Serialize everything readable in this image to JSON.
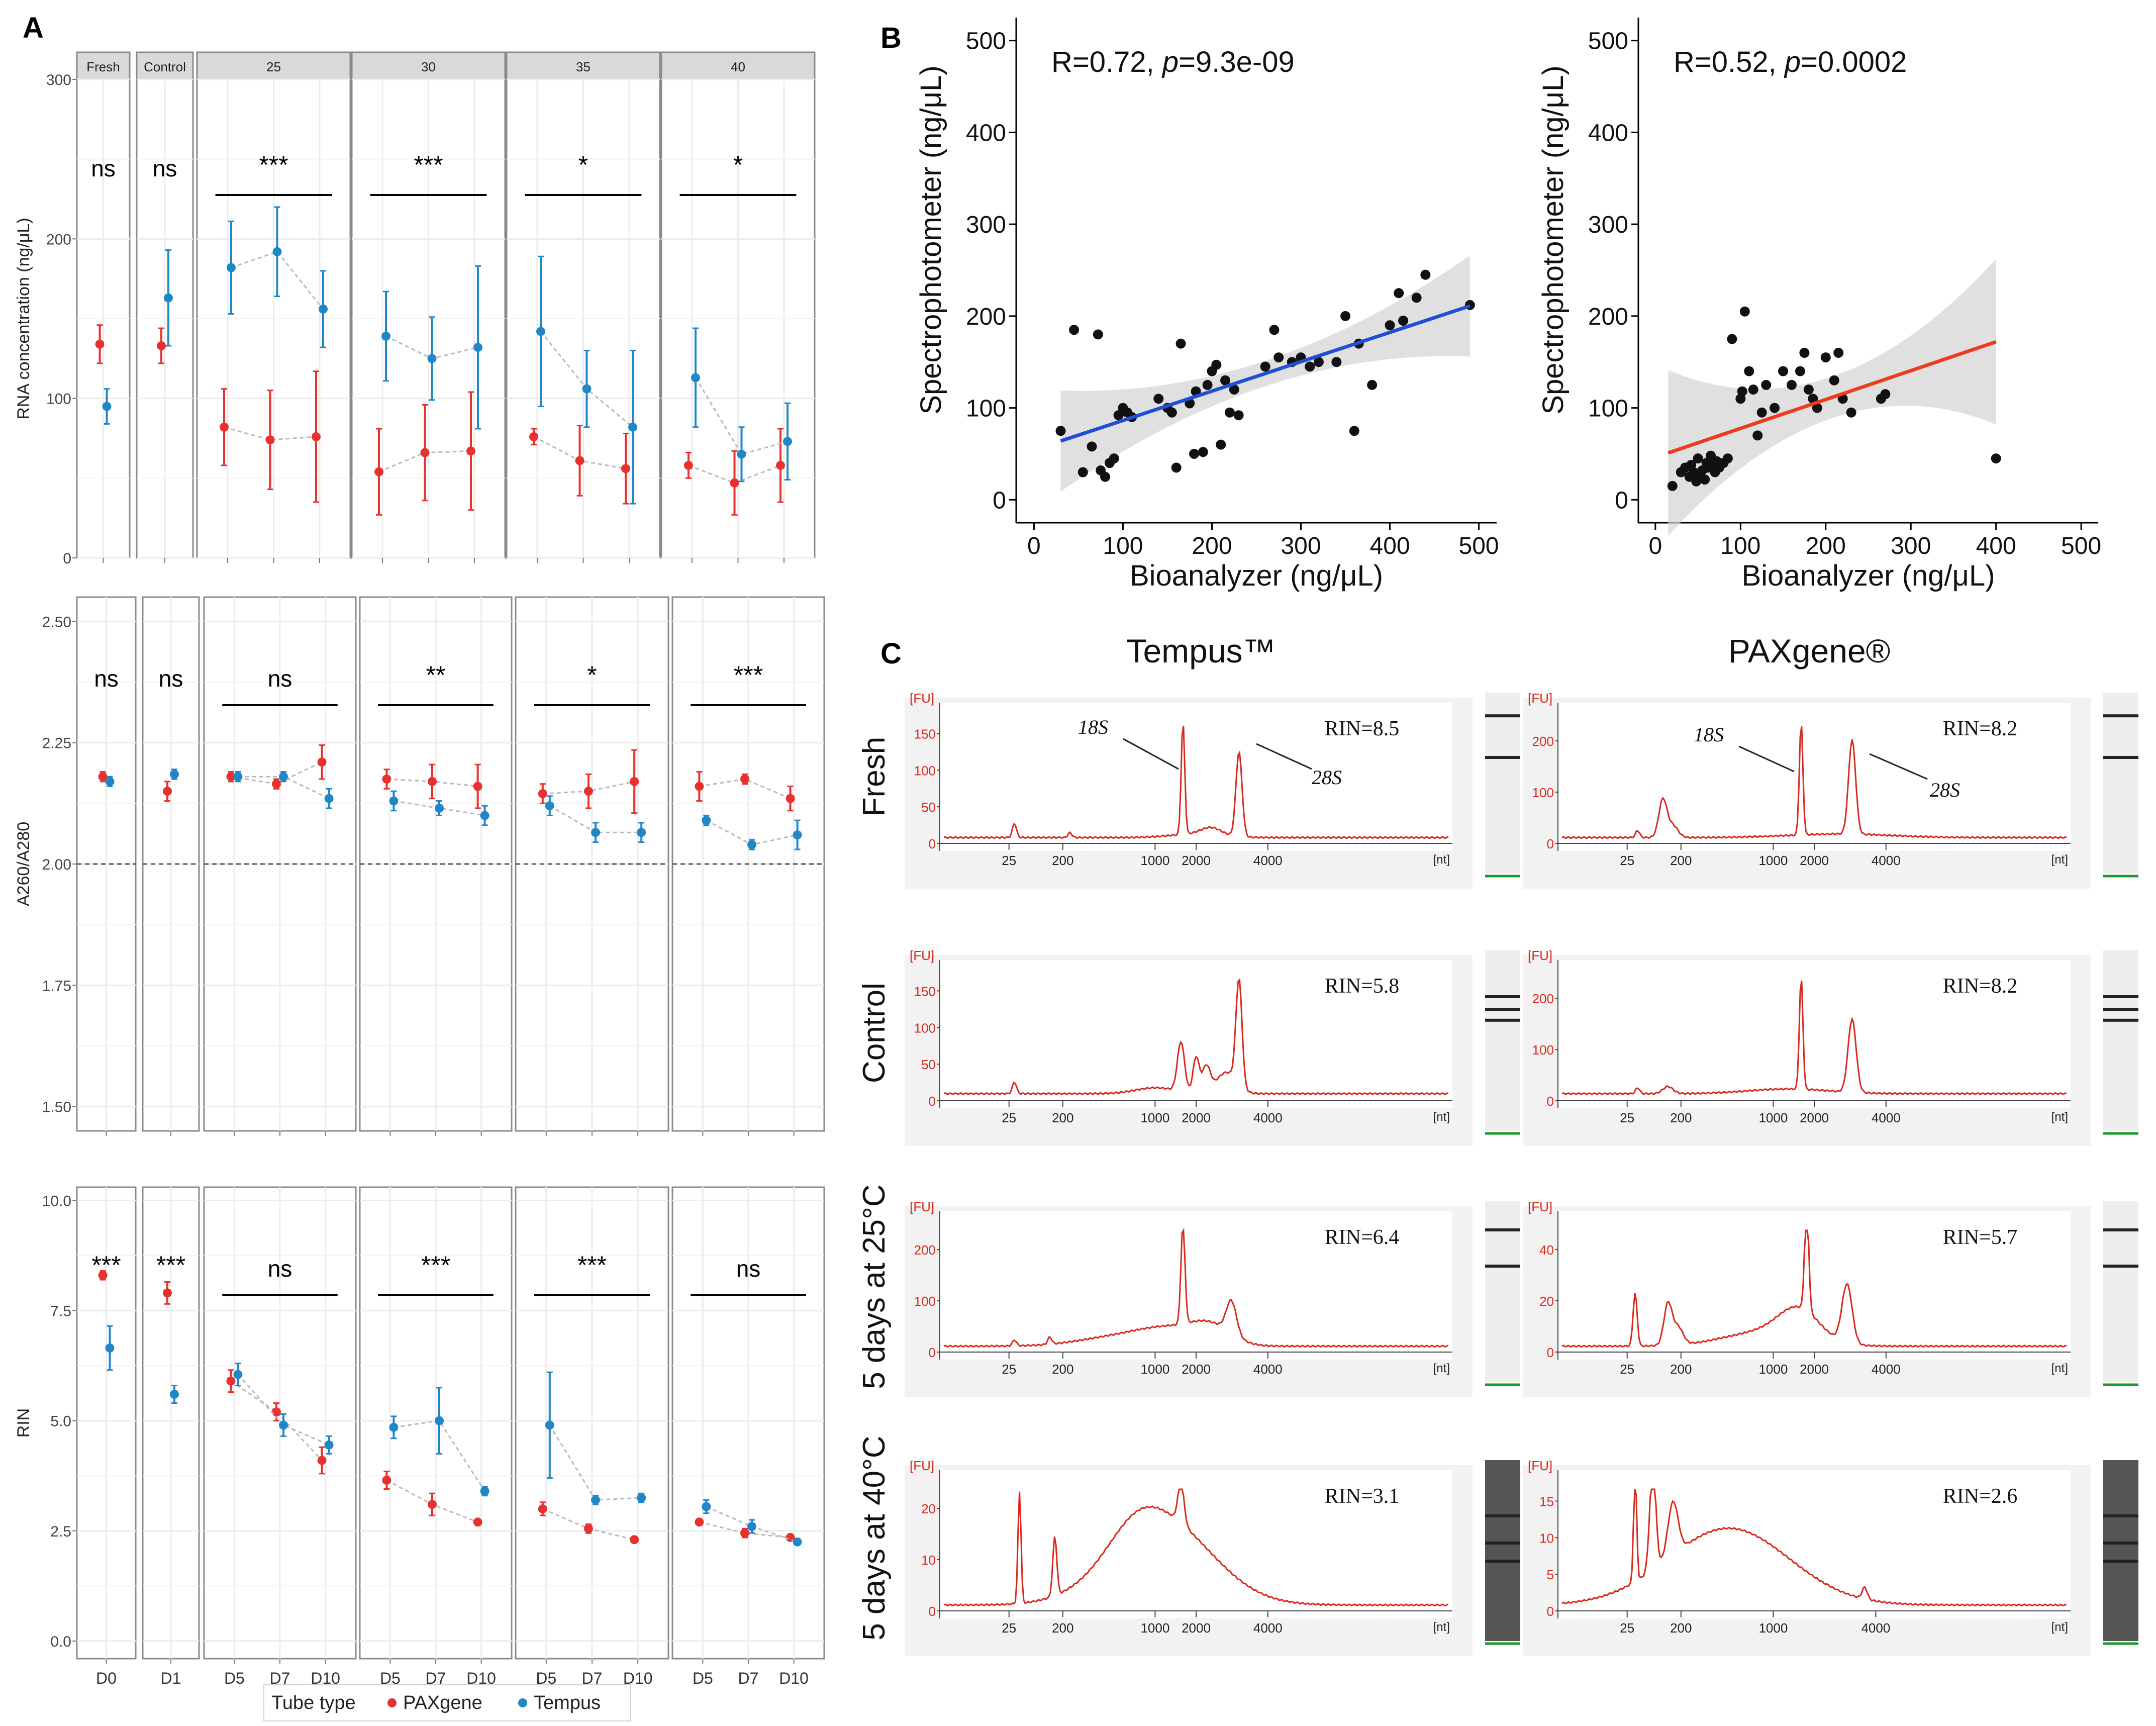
{
  "panel_labels": {
    "a": "A",
    "b": "B",
    "c": "C"
  },
  "colors": {
    "paxgene": "#e8302f",
    "tempus": "#1f87c8",
    "fit_b1": "#1f4fd6",
    "fit_b2": "#ee3b20",
    "trace": "#d9281d",
    "strip_bg": "#d9d9d9",
    "point": "#111111"
  },
  "panel_a": {
    "strip_labels": [
      "Fresh",
      "Control",
      "25",
      "30",
      "35",
      "40"
    ],
    "x_ticks": [
      [
        "D0"
      ],
      [
        "D1"
      ],
      [
        "D5",
        "D7",
        "D10"
      ],
      [
        "D5",
        "D7",
        "D10"
      ],
      [
        "D5",
        "D7",
        "D10"
      ],
      [
        "D5",
        "D7",
        "D10"
      ]
    ],
    "legend": {
      "title": "Tube type",
      "items": [
        "PAXgene",
        "Tempus"
      ]
    },
    "rows": [
      {
        "ylabel": "RNA concentration (ng/μL)",
        "ylim": [
          0,
          300
        ],
        "yticks": [
          "0",
          "100",
          "200",
          "300"
        ],
        "tick_values": [
          0,
          100,
          200,
          300
        ],
        "sig": [
          "ns",
          "ns",
          "***",
          "***",
          "*",
          "*"
        ],
        "paxgene": [
          [
            [
              134,
              12
            ]
          ],
          [
            [
              133,
              11
            ]
          ],
          [
            [
              82,
              24
            ],
            [
              74,
              31
            ],
            [
              76,
              41
            ]
          ],
          [
            [
              54,
              27
            ],
            [
              66,
              30
            ],
            [
              67,
              37
            ]
          ],
          [
            [
              76,
              5
            ],
            [
              61,
              22
            ],
            [
              56,
              22
            ]
          ],
          [
            [
              58,
              8
            ],
            [
              47,
              20
            ],
            [
              58,
              23
            ]
          ]
        ],
        "tempus": [
          [
            [
              95,
              11
            ]
          ],
          [
            [
              163,
              30
            ]
          ],
          [
            [
              182,
              29
            ],
            [
              192,
              28
            ],
            [
              156,
              24
            ]
          ],
          [
            [
              139,
              28
            ],
            [
              125,
              26
            ],
            [
              132,
              51
            ]
          ],
          [
            [
              142,
              47
            ],
            [
              106,
              24
            ],
            [
              82,
              48
            ]
          ],
          [
            [
              113,
              31
            ],
            [
              65,
              17
            ],
            [
              73,
              24
            ]
          ]
        ]
      },
      {
        "ylabel": "A260/A280",
        "ylim": [
          1.45,
          2.55
        ],
        "yticks": [
          "1.50",
          "1.75",
          "2.00",
          "2.25",
          "2.50"
        ],
        "tick_values": [
          1.5,
          1.75,
          2.0,
          2.25,
          2.5
        ],
        "hline": 2.0,
        "sig": [
          "ns",
          "ns",
          "ns",
          "**",
          "*",
          "***"
        ],
        "paxgene": [
          [
            [
              2.18,
              0.01
            ]
          ],
          [
            [
              2.15,
              0.02
            ]
          ],
          [
            [
              2.18,
              0.01
            ],
            [
              2.165,
              0.01
            ],
            [
              2.21,
              0.035
            ]
          ],
          [
            [
              2.175,
              0.02
            ],
            [
              2.17,
              0.035
            ],
            [
              2.16,
              0.045
            ]
          ],
          [
            [
              2.145,
              0.02
            ],
            [
              2.15,
              0.035
            ],
            [
              2.17,
              0.065
            ]
          ],
          [
            [
              2.16,
              0.03
            ],
            [
              2.175,
              0.01
            ],
            [
              2.135,
              0.025
            ]
          ]
        ],
        "tempus": [
          [
            [
              2.17,
              0.01
            ]
          ],
          [
            [
              2.185,
              0.01
            ]
          ],
          [
            [
              2.18,
              0.01
            ],
            [
              2.18,
              0.01
            ],
            [
              2.135,
              0.02
            ]
          ],
          [
            [
              2.13,
              0.02
            ],
            [
              2.115,
              0.015
            ],
            [
              2.1,
              0.02
            ]
          ],
          [
            [
              2.12,
              0.02
            ],
            [
              2.065,
              0.02
            ],
            [
              2.065,
              0.02
            ]
          ],
          [
            [
              2.09,
              0.01
            ],
            [
              2.04,
              0.01
            ],
            [
              2.06,
              0.03
            ]
          ]
        ]
      },
      {
        "ylabel": "RIN",
        "ylim": [
          -0.4,
          10.3
        ],
        "yticks": [
          "0.0",
          "2.5",
          "5.0",
          "7.5",
          "10.0"
        ],
        "tick_values": [
          0,
          2.5,
          5,
          7.5,
          10
        ],
        "sig": [
          "***",
          "***",
          "ns",
          "***",
          "***",
          "ns"
        ],
        "paxgene": [
          [
            [
              8.3,
              0.1
            ]
          ],
          [
            [
              7.9,
              0.25
            ]
          ],
          [
            [
              5.9,
              0.25
            ],
            [
              5.2,
              0.2
            ],
            [
              4.1,
              0.3
            ]
          ],
          [
            [
              3.65,
              0.2
            ],
            [
              3.1,
              0.25
            ],
            [
              2.7,
              0.05
            ]
          ],
          [
            [
              3.0,
              0.15
            ],
            [
              2.55,
              0.1
            ],
            [
              2.3,
              0.05
            ]
          ],
          [
            [
              2.7,
              0.05
            ],
            [
              2.45,
              0.1
            ],
            [
              2.35,
              0.05
            ]
          ]
        ],
        "tempus": [
          [
            [
              6.65,
              0.5
            ]
          ],
          [
            [
              5.6,
              0.2
            ]
          ],
          [
            [
              6.05,
              0.25
            ],
            [
              4.9,
              0.25
            ],
            [
              4.45,
              0.2
            ]
          ],
          [
            [
              4.85,
              0.25
            ],
            [
              5.0,
              0.75
            ],
            [
              3.4,
              0.1
            ]
          ],
          [
            [
              4.9,
              1.2
            ],
            [
              3.2,
              0.1
            ],
            [
              3.25,
              0.1
            ]
          ],
          [
            [
              3.05,
              0.15
            ],
            [
              2.6,
              0.15
            ],
            [
              2.25,
              0.05
            ]
          ]
        ]
      }
    ]
  },
  "chart_data": [
    {
      "type": "scatter",
      "title": "R=0.72, p=9.3e-09",
      "stat_r": "R=0.72, ",
      "stat_p_label": "p",
      "stat_p_value": "=9.3e-09",
      "xlabel": "Bioanalyzer (ng/μL)",
      "ylabel": "Spectrophotometer (ng/μL)",
      "xlim": [
        -20,
        520
      ],
      "ylim": [
        -25,
        525
      ],
      "xticks": [
        "0",
        "100",
        "200",
        "300",
        "400",
        "500"
      ],
      "yticks": [
        "0",
        "100",
        "200",
        "300",
        "400",
        "500"
      ],
      "tick_values": [
        0,
        100,
        200,
        300,
        400,
        500
      ],
      "fit": {
        "x0": 30,
        "y0": 64,
        "x1": 490,
        "y1": 211
      },
      "points": [
        [
          30,
          75
        ],
        [
          45,
          185
        ],
        [
          55,
          30
        ],
        [
          65,
          58
        ],
        [
          72,
          180
        ],
        [
          75,
          32
        ],
        [
          80,
          25
        ],
        [
          85,
          40
        ],
        [
          90,
          45
        ],
        [
          95,
          92
        ],
        [
          100,
          100
        ],
        [
          105,
          95
        ],
        [
          110,
          90
        ],
        [
          140,
          110
        ],
        [
          150,
          100
        ],
        [
          155,
          95
        ],
        [
          160,
          35
        ],
        [
          165,
          170
        ],
        [
          175,
          105
        ],
        [
          180,
          50
        ],
        [
          182,
          118
        ],
        [
          190,
          52
        ],
        [
          195,
          125
        ],
        [
          200,
          140
        ],
        [
          205,
          147
        ],
        [
          210,
          60
        ],
        [
          215,
          130
        ],
        [
          220,
          95
        ],
        [
          225,
          120
        ],
        [
          230,
          92
        ],
        [
          260,
          145
        ],
        [
          270,
          185
        ],
        [
          275,
          155
        ],
        [
          290,
          150
        ],
        [
          300,
          155
        ],
        [
          310,
          145
        ],
        [
          320,
          150
        ],
        [
          340,
          150
        ],
        [
          350,
          200
        ],
        [
          360,
          75
        ],
        [
          365,
          170
        ],
        [
          380,
          125
        ],
        [
          400,
          190
        ],
        [
          410,
          225
        ],
        [
          415,
          195
        ],
        [
          430,
          220
        ],
        [
          440,
          245
        ],
        [
          490,
          212
        ]
      ]
    },
    {
      "type": "scatter",
      "title": "R=0.52, p=0.0002",
      "stat_r": "R=0.52, ",
      "stat_p_label": "p",
      "stat_p_value": "=0.0002",
      "xlabel": "Bioanalyzer (ng/μL)",
      "ylabel": "Spectrophotometer (ng/μL)",
      "xlim": [
        -20,
        520
      ],
      "ylim": [
        -25,
        525
      ],
      "xticks": [
        "0",
        "100",
        "200",
        "300",
        "400",
        "500"
      ],
      "yticks": [
        "0",
        "100",
        "200",
        "300",
        "400",
        "500"
      ],
      "tick_values": [
        0,
        100,
        200,
        300,
        400,
        500
      ],
      "fit": {
        "x0": 15,
        "y0": 51,
        "x1": 400,
        "y1": 172
      },
      "points": [
        [
          20,
          15
        ],
        [
          30,
          30
        ],
        [
          35,
          35
        ],
        [
          40,
          25
        ],
        [
          42,
          38
        ],
        [
          45,
          30
        ],
        [
          48,
          20
        ],
        [
          50,
          45
        ],
        [
          52,
          28
        ],
        [
          55,
          32
        ],
        [
          58,
          22
        ],
        [
          60,
          40
        ],
        [
          62,
          35
        ],
        [
          65,
          48
        ],
        [
          68,
          38
        ],
        [
          70,
          30
        ],
        [
          72,
          42
        ],
        [
          75,
          35
        ],
        [
          80,
          40
        ],
        [
          85,
          45
        ],
        [
          90,
          175
        ],
        [
          100,
          110
        ],
        [
          102,
          118
        ],
        [
          105,
          205
        ],
        [
          110,
          140
        ],
        [
          115,
          120
        ],
        [
          120,
          70
        ],
        [
          125,
          95
        ],
        [
          130,
          125
        ],
        [
          140,
          100
        ],
        [
          150,
          140
        ],
        [
          160,
          125
        ],
        [
          170,
          140
        ],
        [
          175,
          160
        ],
        [
          180,
          120
        ],
        [
          185,
          110
        ],
        [
          190,
          100
        ],
        [
          200,
          155
        ],
        [
          210,
          130
        ],
        [
          215,
          160
        ],
        [
          220,
          110
        ],
        [
          230,
          95
        ],
        [
          265,
          110
        ],
        [
          270,
          115
        ],
        [
          400,
          45
        ]
      ]
    },
    {
      "type": "line",
      "xlabel": "[nt]",
      "ylabel": "[FU]",
      "column_titles": [
        "Tempus™",
        "PAXgene®"
      ],
      "row_labels": [
        "Fresh",
        "Control",
        "5 days at 25°C",
        "5 days at 40°C"
      ],
      "peak_labels": [
        "18S",
        "28S"
      ],
      "rin": [
        [
          "RIN=8.5",
          "RIN=8.2"
        ],
        [
          "RIN=5.8",
          "RIN=8.2"
        ],
        [
          "RIN=6.4",
          "RIN=5.7"
        ],
        [
          "RIN=3.1",
          "RIN=2.6"
        ]
      ],
      "xticks_standard": [
        "25",
        "200",
        "1000",
        "2000",
        "4000"
      ],
      "xticks_40c_paxgene": [
        "25",
        "200",
        "1000",
        "4000"
      ],
      "yticks": [
        [
          [
            "0",
            "50",
            "100",
            "150"
          ],
          [
            "0",
            "100",
            "200"
          ]
        ],
        [
          [
            "0",
            "50",
            "100",
            "150"
          ],
          [
            "0",
            "100",
            "200"
          ]
        ],
        [
          [
            "0",
            "100",
            "200"
          ],
          [
            "0",
            "20",
            "40"
          ]
        ],
        [
          [
            "0",
            "10",
            "20"
          ],
          [
            "0",
            "5",
            "10",
            "15"
          ]
        ]
      ]
    }
  ]
}
